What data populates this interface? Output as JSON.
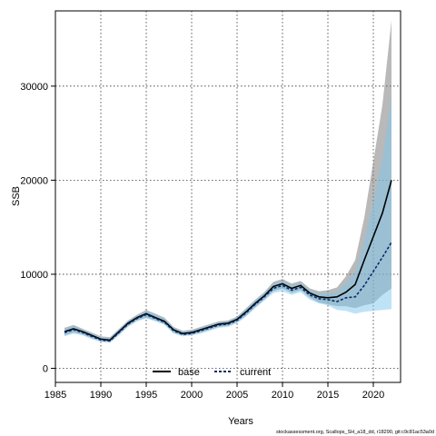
{
  "chart_data": {
    "type": "line",
    "title": "",
    "xlabel": "Years",
    "ylabel": "SSB",
    "xlim": [
      1985,
      2023
    ],
    "ylim": [
      -1500,
      38000
    ],
    "xticks": [
      1985,
      1990,
      1995,
      2000,
      2005,
      2010,
      2015,
      2020
    ],
    "yticks": [
      0,
      10000,
      20000,
      30000
    ],
    "grid": true,
    "legend_position": "bottom-center",
    "x": [
      1986,
      1987,
      1988,
      1989,
      1990,
      1991,
      1992,
      1993,
      1994,
      1995,
      1996,
      1997,
      1998,
      1999,
      2000,
      2001,
      2002,
      2003,
      2004,
      2005,
      2006,
      2007,
      2008,
      2009,
      2010,
      2011,
      2012,
      2013,
      2014,
      2015,
      2016,
      2017,
      2018,
      2019,
      2020,
      2021,
      2022
    ],
    "series": [
      {
        "name": "base",
        "color": "#000000",
        "line_style": "solid",
        "band_color": "#808080",
        "values": [
          3900,
          4200,
          3900,
          3500,
          3100,
          3000,
          3900,
          4800,
          5400,
          5800,
          5400,
          5000,
          4100,
          3700,
          3800,
          4100,
          4400,
          4700,
          4800,
          5200,
          6000,
          6900,
          7700,
          8700,
          9000,
          8500,
          8800,
          8000,
          7600,
          7500,
          7600,
          8100,
          8900,
          11500,
          14000,
          16500,
          20000
        ],
        "lower": [
          3500,
          3800,
          3600,
          3200,
          2900,
          2800,
          3600,
          4500,
          5100,
          5400,
          5100,
          4700,
          3800,
          3500,
          3600,
          3800,
          4100,
          4400,
          4500,
          4900,
          5600,
          6500,
          7300,
          8200,
          8500,
          8000,
          8300,
          7500,
          7000,
          6800,
          6600,
          6600,
          6400,
          6700,
          6900,
          7800,
          8500
        ],
        "upper": [
          4300,
          4600,
          4200,
          3800,
          3400,
          3300,
          4200,
          5100,
          5700,
          6200,
          5800,
          5400,
          4400,
          4000,
          4100,
          4400,
          4700,
          5000,
          5100,
          5500,
          6400,
          7300,
          8100,
          9200,
          9500,
          9000,
          9300,
          8500,
          8200,
          8300,
          8600,
          9800,
          11500,
          16000,
          22000,
          28000,
          37000
        ]
      },
      {
        "name": "current",
        "color": "#0a2a6a",
        "line_style": "dashed",
        "band_color": "#7ec8ef",
        "values": [
          3800,
          4100,
          3800,
          3400,
          3000,
          2900,
          3800,
          4700,
          5300,
          5700,
          5300,
          4900,
          4000,
          3600,
          3700,
          4000,
          4300,
          4600,
          4700,
          5100,
          5900,
          6800,
          7600,
          8500,
          8800,
          8300,
          8600,
          7800,
          7400,
          7300,
          7100,
          7500,
          7600,
          8800,
          10300,
          11800,
          13400
        ],
        "lower": [
          3400,
          3700,
          3500,
          3100,
          2800,
          2700,
          3500,
          4400,
          5000,
          5300,
          5000,
          4600,
          3700,
          3400,
          3500,
          3700,
          4000,
          4300,
          4400,
          4800,
          5500,
          6400,
          7200,
          8000,
          8200,
          7800,
          8100,
          7300,
          6900,
          6700,
          6200,
          6100,
          5800,
          6000,
          6100,
          6200,
          6300
        ],
        "upper": [
          4200,
          4500,
          4100,
          3700,
          3300,
          3200,
          4100,
          5000,
          5600,
          6100,
          5700,
          5300,
          4300,
          3900,
          4000,
          4300,
          4600,
          4900,
          5000,
          5400,
          6300,
          7200,
          8000,
          9000,
          9300,
          8800,
          9100,
          8300,
          8000,
          8000,
          8100,
          9100,
          10200,
          13500,
          17700,
          22300,
          28800
        ]
      }
    ]
  },
  "footer": "stockassessment.org, Scallops_SH_a18_dd, r18290, git:c9c81ac53a0d"
}
